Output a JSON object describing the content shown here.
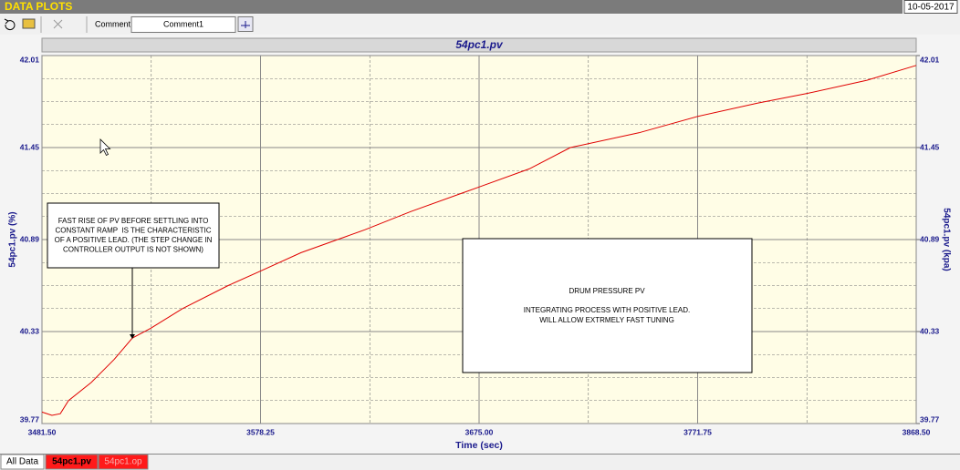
{
  "window": {
    "title": "DATA PLOTS",
    "date": "10-05-2017",
    "comment_label": "Comment",
    "comment_value": "Comment1",
    "tabs": [
      "All Data",
      "54pc1.pv",
      "54pc1.op"
    ]
  },
  "chart_data": {
    "type": "line",
    "title": "54pc1.pv",
    "x_label": "Time (sec)",
    "y_label": "54pc1.pv (%)",
    "y2_label": "54pc1.pv (kpa)",
    "x": [
      3481.5,
      3485.9,
      3489.6,
      3493.2,
      3503.3,
      3513.4,
      3521.5,
      3529.6,
      3543.7,
      3563.9,
      3578.5,
      3596.2,
      3624.5,
      3644.7,
      3675.0,
      3697.2,
      3715.4,
      3745.7,
      3771.9,
      3798.2,
      3820.4,
      3846.7,
      3868.5
    ],
    "values": [
      39.84,
      39.82,
      39.83,
      39.91,
      40.02,
      40.16,
      40.29,
      40.35,
      40.47,
      40.61,
      40.7,
      40.81,
      40.95,
      41.06,
      41.21,
      41.32,
      41.45,
      41.54,
      41.64,
      41.72,
      41.78,
      41.86,
      41.95
    ],
    "color": "#e00000",
    "xlim": [
      3481.5,
      3868.5
    ],
    "xticks": [
      {
        "value": 3481.5,
        "label": "3481.50"
      },
      {
        "value": 3578.25,
        "label": "3578.25"
      },
      {
        "value": 3675.0,
        "label": "3675.00"
      },
      {
        "value": 3771.75,
        "label": "3771.75"
      },
      {
        "value": 3868.5,
        "label": "3868.50"
      }
    ],
    "ylim": [
      39.77,
      42.01
    ],
    "yticks": [
      39.77,
      40.33,
      40.89,
      41.45,
      42.01
    ],
    "y2lim": [
      39.77,
      42.01
    ],
    "y2ticks": [
      39.77,
      40.33,
      40.89,
      41.45,
      42.01
    ],
    "grid": true,
    "annotations": [
      {
        "lines": [
          "FAST RISE OF PV BEFORE SETTLING INTO",
          "CONSTANT RAMP  IS THE CHARACTERISTIC",
          "OF A POSITIVE LEAD. (THE STEP CHANGE IN",
          "CONTROLLER OUTPUT IS NOT SHOWN)"
        ]
      },
      {
        "lines": [
          "DRUM PRESSURE PV",
          "INTEGRATING PROCESS WITH POSITIVE LEAD.",
          "WILL ALLOW EXTRMELY FAST TUNING"
        ]
      }
    ]
  }
}
